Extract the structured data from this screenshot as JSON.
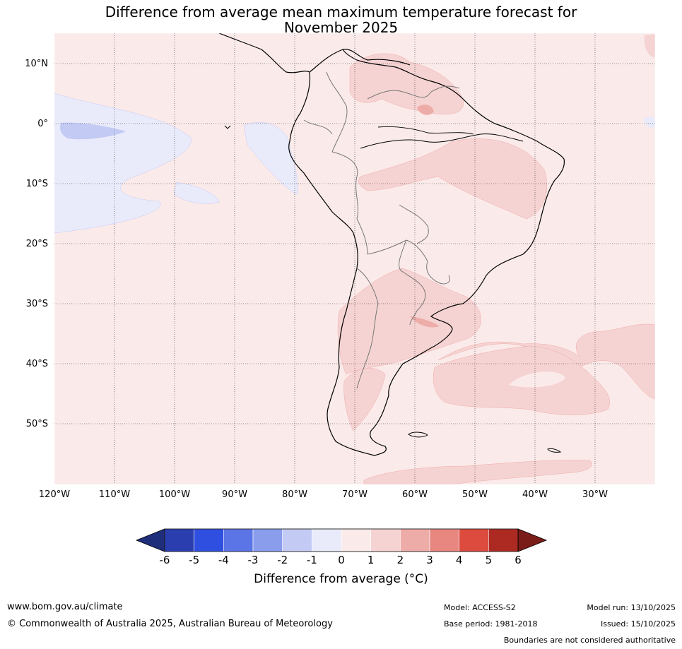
{
  "title": {
    "line1": "Difference from average mean maximum temperature forecast for",
    "line2": "November 2025"
  },
  "map": {
    "lat_labels": [
      "10°N",
      "0°",
      "10°S",
      "20°S",
      "30°S",
      "40°S",
      "50°S"
    ],
    "lon_labels": [
      "120°W",
      "110°W",
      "100°W",
      "90°W",
      "80°W",
      "70°W",
      "60°W",
      "50°W",
      "40°W",
      "30°W"
    ]
  },
  "colorbar": {
    "title": "Difference from average (°C)",
    "ticks": [
      "-6",
      "-5",
      "-4",
      "-3",
      "-2",
      "-1",
      "0",
      "1",
      "2",
      "3",
      "4",
      "5",
      "6"
    ],
    "colors": [
      "#1f2e7a",
      "#2a3eb0",
      "#2f4fe0",
      "#5b74e6",
      "#8a9ded",
      "#c3caf4",
      "#e9ebfb",
      "#fbeaea",
      "#f5d3d2",
      "#eeaca8",
      "#e88680",
      "#dd4a3e",
      "#ad2a22",
      "#7a1d19"
    ]
  },
  "footer": {
    "site": "www.bom.gov.au/climate",
    "copyright": "© Commonwealth of Australia 2025, Australian Bureau of Meteorology",
    "model": "Model: ACCESS-S2",
    "base_period": "Base period: 1981-2018",
    "model_run": "Model run: 13/10/2025",
    "issued": "Issued: 15/10/2025",
    "disclaimer": "Boundaries are not considered authoritative"
  }
}
